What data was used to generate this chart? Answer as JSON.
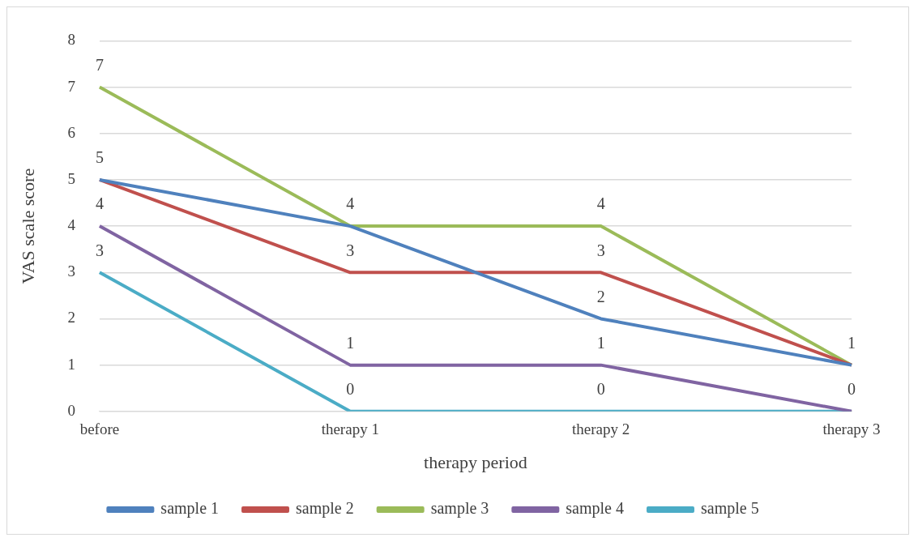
{
  "chart_data": {
    "type": "line",
    "xlabel": "therapy period",
    "ylabel": "VAS scale score",
    "categories": [
      "before",
      "therapy 1",
      "therapy 2",
      "therapy 3"
    ],
    "series": [
      {
        "name": "sample 1",
        "color": "#4f81bd",
        "values": [
          5,
          4,
          2,
          1
        ],
        "value_labels": [
          "5",
          "4",
          "2",
          "1"
        ]
      },
      {
        "name": "sample 2",
        "color": "#c0504d",
        "values": [
          5,
          3,
          3,
          1
        ],
        "value_labels": [
          null,
          "3",
          "3",
          null
        ]
      },
      {
        "name": "sample 3",
        "color": "#9bbb59",
        "values": [
          7,
          4,
          4,
          1
        ],
        "value_labels": [
          "7",
          null,
          "4",
          null
        ]
      },
      {
        "name": "sample 4",
        "color": "#8064a2",
        "values": [
          4,
          1,
          1,
          0
        ],
        "value_labels": [
          "4",
          "1",
          "1",
          "0"
        ]
      },
      {
        "name": "sample 5",
        "color": "#4bacc6",
        "values": [
          3,
          0,
          0,
          0
        ],
        "value_labels": [
          "3",
          "0",
          "0",
          null
        ]
      }
    ],
    "ylim": [
      0,
      8
    ],
    "yticks": [
      0,
      1,
      2,
      3,
      4,
      5,
      6,
      7,
      8
    ],
    "grid": "y",
    "legend": "bottom",
    "marker": "none",
    "line_style": "solid"
  }
}
